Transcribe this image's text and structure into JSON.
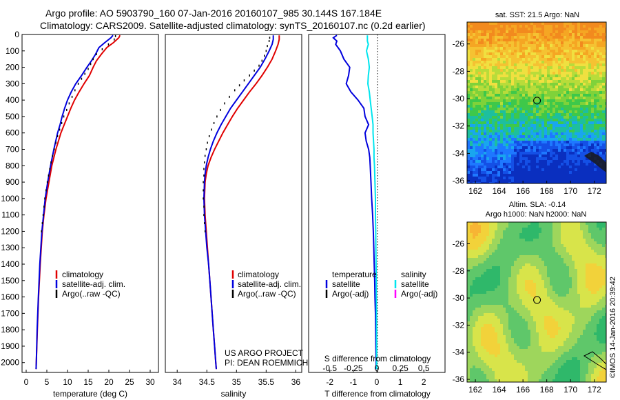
{
  "header": {
    "line1": "Argo profile: AO 5903790_160 07-Jan-2016 20160107_985 30.144S 167.184E",
    "line2": "Climatology: CARS2009. Satellite-adjusted climatology: synTS_20160107.nc (0.2d earlier)"
  },
  "colors": {
    "climatology": "#e00000",
    "satellite": "#0000dd",
    "argo": "#000000",
    "sat_sal": "#00e5ee",
    "argo_sal_adj": "#ff00ff"
  },
  "chart_data": [
    {
      "type": "line",
      "title": "",
      "xlabel": "temperature (deg C)",
      "ylabel": "",
      "xlim": [
        -1,
        32
      ],
      "ylim": [
        2060,
        0
      ],
      "xticks": [
        "0",
        "5",
        "10",
        "15",
        "20",
        "25",
        "30"
      ],
      "xtick_values": [
        0,
        5,
        10,
        15,
        20,
        25,
        30
      ],
      "yticks": [
        "0",
        "100",
        "200",
        "300",
        "400",
        "500",
        "600",
        "700",
        "800",
        "900",
        "1000",
        "1100",
        "1200",
        "1300",
        "1400",
        "1500",
        "1600",
        "1700",
        "1800",
        "1900",
        "2000"
      ],
      "ytick_values": [
        0,
        100,
        200,
        300,
        400,
        500,
        600,
        700,
        800,
        900,
        1000,
        1100,
        1200,
        1300,
        1400,
        1500,
        1600,
        1700,
        1800,
        1900,
        2000
      ],
      "legend": [
        "climatology",
        "satellite-adj. clim.",
        "Argo(..raw -QC)"
      ],
      "series": [
        {
          "name": "climatology",
          "color": "#e00000",
          "depth": [
            5,
            20,
            50,
            80,
            120,
            160,
            200,
            250,
            300,
            350,
            400,
            450,
            500,
            550,
            600,
            700,
            800,
            900,
            1000,
            1100,
            1200,
            1400,
            1600,
            1800,
            2000,
            2040
          ],
          "values": [
            22.7,
            22.4,
            21.1,
            19.5,
            18.2,
            17.0,
            16.2,
            15.3,
            14.0,
            12.8,
            11.7,
            10.8,
            10.0,
            9.2,
            8.4,
            7.2,
            6.2,
            5.5,
            4.8,
            4.3,
            3.9,
            3.4,
            3.0,
            2.7,
            2.45,
            2.4
          ]
        },
        {
          "name": "satellite-adj. clim.",
          "color": "#0000dd",
          "depth": [
            5,
            20,
            50,
            80,
            120,
            160,
            200,
            250,
            300,
            350,
            400,
            450,
            500,
            550,
            600,
            700,
            800,
            900,
            1000,
            1100,
            1200,
            1400,
            1600,
            1800,
            2000,
            2040
          ],
          "values": [
            21.0,
            20.5,
            19.0,
            17.6,
            16.8,
            15.8,
            14.7,
            13.4,
            12.0,
            10.9,
            10.0,
            9.3,
            8.7,
            8.2,
            7.6,
            6.7,
            5.9,
            5.2,
            4.6,
            4.2,
            3.8,
            3.3,
            2.95,
            2.65,
            2.45,
            2.4
          ]
        },
        {
          "name": "Argo",
          "color": "#000000",
          "depth": [
            10,
            30,
            60,
            90,
            120,
            150,
            180,
            210,
            240,
            270,
            300,
            340,
            380,
            420,
            460,
            500,
            540,
            580,
            620,
            660,
            700,
            740,
            780,
            820,
            860,
            900,
            950,
            1000,
            1050,
            1100,
            1150,
            1200
          ],
          "values": [
            21.6,
            21.3,
            19.9,
            18.4,
            17.0,
            16.2,
            15.6,
            15.0,
            14.2,
            13.4,
            12.6,
            11.8,
            11.1,
            10.4,
            9.8,
            9.1,
            8.6,
            8.1,
            7.6,
            7.2,
            6.8,
            6.4,
            6.0,
            5.7,
            5.4,
            5.1,
            4.8,
            4.5,
            4.3,
            4.1,
            3.9,
            3.7
          ]
        }
      ]
    },
    {
      "type": "line",
      "title": "",
      "xlabel": "salinity",
      "ylabel": "",
      "xlim": [
        33.8,
        36.1
      ],
      "ylim": [
        2060,
        0
      ],
      "xticks": [
        "34",
        "34.5",
        "35",
        "35.5",
        "36"
      ],
      "xtick_values": [
        34,
        34.5,
        35,
        35.5,
        36
      ],
      "legend": [
        "climatology",
        "satellite-adj. clim.",
        "Argo(..raw -QC)"
      ],
      "annotation": [
        "US ARGO PROJECT",
        "PI: DEAN ROEMMICH"
      ],
      "series": [
        {
          "name": "climatology",
          "color": "#e00000",
          "depth": [
            5,
            30,
            60,
            100,
            150,
            200,
            250,
            300,
            350,
            400,
            450,
            500,
            550,
            600,
            650,
            700,
            750,
            800,
            850,
            900,
            1000,
            1100,
            1200,
            1300,
            1400,
            1500,
            1600,
            1700,
            1800,
            1900,
            2000,
            2040
          ],
          "values": [
            35.72,
            35.72,
            35.7,
            35.66,
            35.6,
            35.52,
            35.43,
            35.33,
            35.22,
            35.12,
            35.02,
            34.93,
            34.85,
            34.77,
            34.7,
            34.63,
            34.57,
            34.52,
            34.49,
            34.47,
            34.46,
            34.47,
            34.49,
            34.51,
            34.53,
            34.55,
            34.57,
            34.59,
            34.61,
            34.63,
            34.65,
            34.66
          ]
        },
        {
          "name": "satellite-adj. clim.",
          "color": "#0000dd",
          "depth": [
            5,
            30,
            60,
            100,
            150,
            200,
            250,
            300,
            350,
            400,
            450,
            500,
            550,
            600,
            650,
            700,
            750,
            800,
            850,
            900,
            1000,
            1100,
            1200,
            1300,
            1400,
            1500,
            1600,
            1700,
            1800,
            1900,
            2000,
            2040
          ],
          "values": [
            35.62,
            35.62,
            35.6,
            35.55,
            35.48,
            35.4,
            35.3,
            35.2,
            35.1,
            35.0,
            34.9,
            34.82,
            34.74,
            34.67,
            34.61,
            34.56,
            34.52,
            34.49,
            34.47,
            34.46,
            34.45,
            34.46,
            34.48,
            34.5,
            34.53,
            34.55,
            34.57,
            34.59,
            34.61,
            34.63,
            34.65,
            34.66
          ]
        },
        {
          "name": "Argo",
          "color": "#000000",
          "depth": [
            20,
            40,
            70,
            100,
            130,
            160,
            190,
            220,
            250,
            280,
            310,
            340,
            380,
            420,
            460,
            500,
            540,
            580,
            620,
            660,
            700,
            740,
            780,
            820,
            860,
            900,
            950,
            1000,
            1050,
            1100,
            1150,
            1200
          ],
          "values": [
            35.56,
            35.55,
            35.52,
            35.5,
            35.47,
            35.43,
            35.38,
            35.3,
            35.22,
            35.13,
            35.05,
            34.97,
            34.88,
            34.8,
            34.73,
            34.67,
            34.62,
            34.58,
            34.54,
            34.51,
            34.49,
            34.47,
            34.46,
            34.45,
            34.45,
            34.44,
            34.44,
            34.44,
            34.45,
            34.45,
            34.46,
            34.47
          ]
        }
      ]
    },
    {
      "type": "line",
      "title": "",
      "xlabel": "T difference from climatology",
      "ylabel": "",
      "xlim": [
        -2.9,
        2.9
      ],
      "ylim": [
        2060,
        0
      ],
      "xticks": [
        "-2",
        "-1",
        "0",
        "1",
        "2"
      ],
      "xtick_values": [
        -2,
        -1,
        0,
        1,
        2
      ],
      "xlabel_top": "S difference from climatology",
      "xticks_top": [
        "-0.5",
        "-0.25",
        "0",
        "0.25",
        "0.5"
      ],
      "xtick_top_values": [
        -0.5,
        -0.25,
        0,
        0.25,
        0.5
      ],
      "legend_temperature": [
        "temperature",
        "satellite",
        "Argo(-adj)"
      ],
      "legend_salinity": [
        "salinity",
        "satellite",
        "Argo(-adj)"
      ],
      "series": [
        {
          "name": "T satellite",
          "color": "#0000dd",
          "depth": [
            5,
            20,
            40,
            60,
            80,
            100,
            150,
            200,
            250,
            300,
            350,
            400,
            450,
            500,
            550,
            600,
            650,
            700,
            750,
            800,
            900,
            1000,
            1100,
            1200,
            1300,
            1400,
            1500,
            1600,
            1700,
            1800,
            1900,
            2000,
            2040
          ],
          "values": [
            -1.7,
            -1.85,
            -1.7,
            -1.75,
            -1.65,
            -1.55,
            -1.4,
            -1.15,
            -1.2,
            -1.3,
            -1.1,
            -0.8,
            -0.55,
            -0.5,
            -0.35,
            -0.5,
            -0.45,
            -0.35,
            -0.3,
            -0.28,
            -0.25,
            -0.22,
            -0.18,
            -0.15,
            -0.13,
            -0.11,
            -0.09,
            -0.08,
            -0.06,
            -0.05,
            -0.04,
            -0.03,
            -0.03
          ]
        },
        {
          "name": "S satellite",
          "color": "#00e5ee",
          "depth": [
            5,
            20,
            40,
            60,
            80,
            100,
            150,
            200,
            250,
            300,
            350,
            400,
            450,
            500,
            550,
            600,
            650,
            700,
            750,
            800,
            900,
            1000,
            1100,
            1200,
            1300,
            1400,
            1500,
            1600,
            1700,
            1800,
            1900,
            2000,
            2040
          ],
          "values": [
            -0.1,
            -0.1,
            -0.1,
            -0.09,
            -0.1,
            -0.11,
            -0.09,
            -0.08,
            -0.09,
            -0.095,
            -0.08,
            -0.07,
            -0.06,
            -0.05,
            -0.04,
            -0.04,
            -0.035,
            -0.03,
            -0.03,
            -0.025,
            -0.02,
            -0.015,
            -0.015,
            -0.012,
            -0.01,
            -0.008,
            -0.006,
            -0.005,
            -0.004,
            -0.003,
            -0.002,
            -0.002,
            -0.002
          ]
        }
      ]
    },
    {
      "type": "heatmap",
      "title": "sat. SST: 21.5 Argo: NaN",
      "xlabel": "",
      "ylabel": "",
      "xlim": [
        161.3,
        173
      ],
      "ylim": [
        -36.2,
        -24.4
      ],
      "xticks": [
        "162",
        "164",
        "166",
        "168",
        "170",
        "172"
      ],
      "xtick_values": [
        162,
        164,
        166,
        168,
        170,
        172
      ],
      "yticks": [
        "-26",
        "-28",
        "-30",
        "-32",
        "-34",
        "-36"
      ],
      "ytick_values": [
        -26,
        -28,
        -30,
        -32,
        -34,
        -36
      ],
      "marker": {
        "lon": 167.184,
        "lat": -30.144
      }
    },
    {
      "type": "heatmap",
      "title": "Altim. SLA: -0.14",
      "subtitle": "Argo h1000: NaN h2000: NaN",
      "xlabel": "",
      "ylabel": "",
      "xlim": [
        161.3,
        173
      ],
      "ylim": [
        -36.2,
        -24.4
      ],
      "xticks": [
        "162",
        "164",
        "166",
        "168",
        "170",
        "172"
      ],
      "xtick_values": [
        162,
        164,
        166,
        168,
        170,
        172
      ],
      "yticks": [
        "-26",
        "-28",
        "-30",
        "-32",
        "-34",
        "-36"
      ],
      "ytick_values": [
        -26,
        -28,
        -30,
        -32,
        -34,
        -36
      ],
      "marker": {
        "lon": 167.184,
        "lat": -30.144
      }
    }
  ],
  "credit": "©IMOS 14-Jan-2016 20:39:42"
}
